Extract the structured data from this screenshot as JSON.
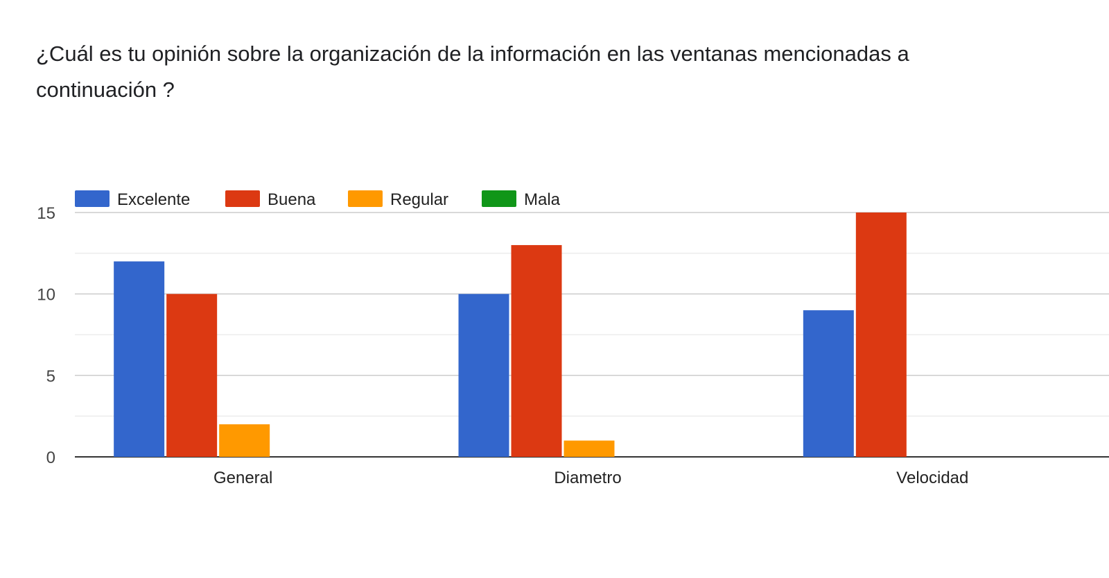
{
  "question": {
    "title": "¿Cuál es tu opinión sobre la organización de la información en las ventanas mencionadas a continuación ?"
  },
  "chart_data": {
    "type": "bar",
    "title": "",
    "xlabel": "",
    "ylabel": "",
    "categories": [
      "General",
      "Diametro",
      "Velocidad"
    ],
    "series": [
      {
        "name": "Excelente",
        "values": [
          12,
          10,
          9
        ],
        "color": "#3366cc"
      },
      {
        "name": "Buena",
        "values": [
          10,
          13,
          15
        ],
        "color": "#dc3912"
      },
      {
        "name": "Regular",
        "values": [
          2,
          1,
          0
        ],
        "color": "#ff9900"
      },
      {
        "name": "Mala",
        "values": [
          0,
          0,
          0
        ],
        "color": "#109618"
      }
    ],
    "ylim": [
      0,
      15
    ],
    "yticks": [
      0,
      5,
      10,
      15
    ],
    "grid": true,
    "legend_position": "top-left"
  }
}
